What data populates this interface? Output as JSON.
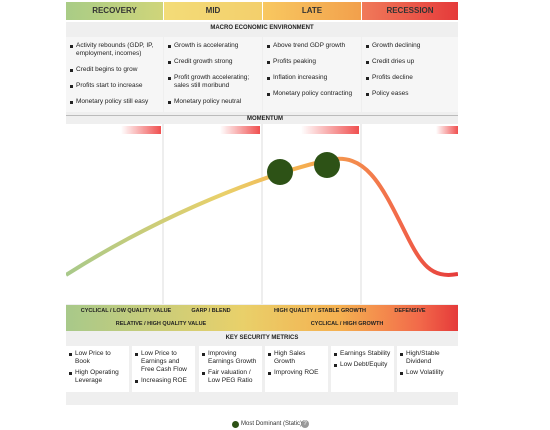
{
  "phases": [
    "RECOVERY",
    "MID",
    "LATE",
    "RECESSION"
  ],
  "macro": {
    "title": "MACRO ECONOMIC ENVIRONMENT",
    "columns": [
      [
        "Activity rebounds (GDP, IP, employment, incomes)",
        "Credit begins to grow",
        "Profits start to increase",
        "Monetary policy still easy"
      ],
      [
        "Growth is accelerating",
        "Credit growth strong",
        "Profit growth accelerating; sales still moribund",
        "Monetary policy neutral"
      ],
      [
        "Above trend GDP growth",
        "Profits peaking",
        "Inflation increasing",
        "Monetary policy contracting"
      ],
      [
        "Growth declining",
        "Credit dries up",
        "Profits decline",
        "Policy eases"
      ]
    ]
  },
  "momentum": "MOMENTUM",
  "styles": {
    "top": [
      "CYCLICAL / LOW QUALITY VALUE",
      "GARP / BLEND",
      "HIGH QUALITY / STABLE GROWTH",
      "DEFENSIVE"
    ],
    "bottom": [
      "RELATIVE / HIGH QUALITY VALUE",
      "CYCLICAL / HIGH GROWTH"
    ]
  },
  "metrics": {
    "title": "KEY SECURITY METRICS",
    "boxes": [
      [
        "Low Price to Book",
        "High Operating Leverage"
      ],
      [
        "Low Price to Earnings and Free Cash Flow",
        "Increasing ROE"
      ],
      [
        "Improving Earnings Growth",
        "Fair valuation / Low PEG Ratio"
      ],
      [
        "High Sales Growth",
        "Improving ROE"
      ],
      [
        "Earnings Stability",
        "Low Debt/Equity"
      ],
      [
        "High/Stable Dividend",
        "Low Volatility"
      ]
    ]
  },
  "legend": "Most Dominant (Static)"
}
